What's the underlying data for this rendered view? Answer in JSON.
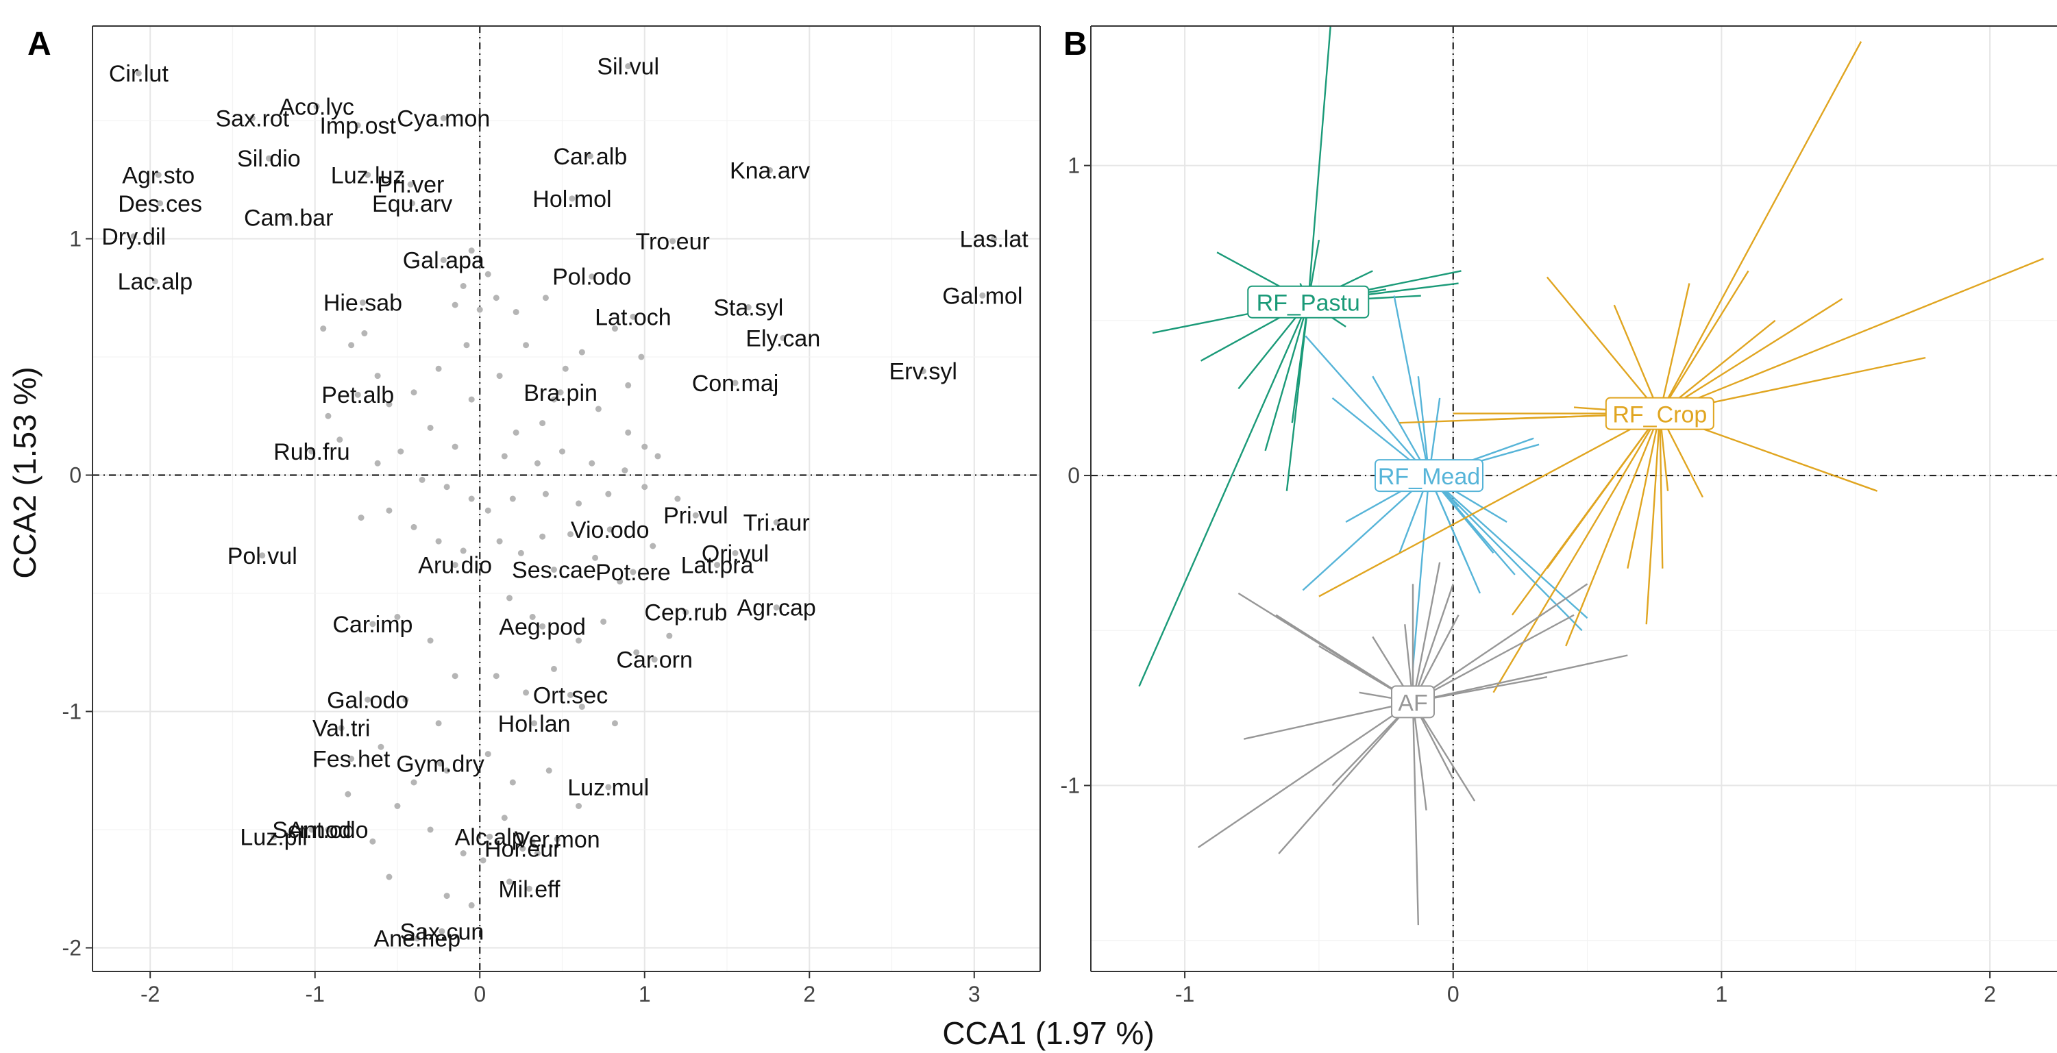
{
  "figure": {
    "xlabel": "CCA1 (1.97 %)",
    "ylabel": "CCA2 (1.53 %)"
  },
  "chart_data": [
    {
      "panel": "A",
      "type": "scatter",
      "grid": true,
      "xlim": [
        -2.35,
        3.4
      ],
      "ylim": [
        -2.1,
        1.9
      ],
      "xticks": [
        -2,
        -1,
        0,
        1,
        2,
        3
      ],
      "yticks": [
        -2,
        -1,
        0,
        1
      ],
      "reference_lines": {
        "x": 0,
        "y": 0,
        "style": "dashed"
      },
      "point_color": "#b5b5b5",
      "labels": [
        {
          "text": "Cir.lut",
          "x": -2.07,
          "y": 1.7
        },
        {
          "text": "Aco.lyc",
          "x": -0.99,
          "y": 1.56
        },
        {
          "text": "Sil.vul",
          "x": 0.9,
          "y": 1.73
        },
        {
          "text": "Sax.rot",
          "x": -1.38,
          "y": 1.51
        },
        {
          "text": "Imp.ost",
          "x": -0.74,
          "y": 1.48
        },
        {
          "text": "Cya.mon",
          "x": -0.22,
          "y": 1.51
        },
        {
          "text": "Car.alb",
          "x": 0.67,
          "y": 1.35
        },
        {
          "text": "Kna.arv",
          "x": 1.76,
          "y": 1.29
        },
        {
          "text": "Agr.sto",
          "x": -1.95,
          "y": 1.27
        },
        {
          "text": "Sil.dio",
          "x": -1.28,
          "y": 1.34
        },
        {
          "text": "Luz.luz",
          "x": -0.68,
          "y": 1.27
        },
        {
          "text": "Pri.ver",
          "x": -0.42,
          "y": 1.23
        },
        {
          "text": "Hol.mol",
          "x": 0.56,
          "y": 1.17
        },
        {
          "text": "Des.ces",
          "x": -1.94,
          "y": 1.15
        },
        {
          "text": "Equ.arv",
          "x": -0.41,
          "y": 1.15
        },
        {
          "text": "Tro.eur",
          "x": 1.17,
          "y": 0.99
        },
        {
          "text": "Dry.dil",
          "x": -2.1,
          "y": 1.01
        },
        {
          "text": "Cam.bar",
          "x": -1.16,
          "y": 1.09
        },
        {
          "text": "Gal.apa",
          "x": -0.22,
          "y": 0.91
        },
        {
          "text": "Pol.odo",
          "x": 0.68,
          "y": 0.84
        },
        {
          "text": "Las.lat",
          "x": 3.12,
          "y": 1.0
        },
        {
          "text": "Lac.alp",
          "x": -1.97,
          "y": 0.82
        },
        {
          "text": "Sta.syl",
          "x": 1.63,
          "y": 0.71
        },
        {
          "text": "Gal.mol",
          "x": 3.05,
          "y": 0.76
        },
        {
          "text": "Lat.och",
          "x": 0.93,
          "y": 0.67
        },
        {
          "text": "Hie.sab",
          "x": -0.71,
          "y": 0.73
        },
        {
          "text": "Erv.syl",
          "x": 2.69,
          "y": 0.44
        },
        {
          "text": "Ely.can",
          "x": 1.84,
          "y": 0.58
        },
        {
          "text": "Bra.pin",
          "x": 0.49,
          "y": 0.35
        },
        {
          "text": "Con.maj",
          "x": 1.55,
          "y": 0.39
        },
        {
          "text": "Pet.alb",
          "x": -0.74,
          "y": 0.34
        },
        {
          "text": "Rub.fru",
          "x": -1.02,
          "y": 0.1
        },
        {
          "text": "Pri.vul",
          "x": 1.31,
          "y": -0.17
        },
        {
          "text": "Tri.aur",
          "x": 1.8,
          "y": -0.2
        },
        {
          "text": "Vio.odo",
          "x": 0.79,
          "y": -0.23
        },
        {
          "text": "Ori.vul",
          "x": 1.55,
          "y": -0.33
        },
        {
          "text": "Pol.vul",
          "x": -1.32,
          "y": -0.34
        },
        {
          "text": "Aru.dio",
          "x": -0.15,
          "y": -0.38
        },
        {
          "text": "Ses.cae",
          "x": 0.45,
          "y": -0.4
        },
        {
          "text": "Pot.ere",
          "x": 0.93,
          "y": -0.41
        },
        {
          "text": "Lat.pra",
          "x": 1.44,
          "y": -0.38
        },
        {
          "text": "Agr.cap",
          "x": 1.8,
          "y": -0.56
        },
        {
          "text": "Car.imp",
          "x": -0.65,
          "y": -0.63
        },
        {
          "text": "Cep.rub",
          "x": 1.25,
          "y": -0.58
        },
        {
          "text": "Aeg.pod",
          "x": 0.38,
          "y": -0.64
        },
        {
          "text": "Gal.odo",
          "x": -0.68,
          "y": -0.95
        },
        {
          "text": "Ort.sec",
          "x": 0.55,
          "y": -0.93
        },
        {
          "text": "Car.orn",
          "x": 1.06,
          "y": -0.78
        },
        {
          "text": "Val.tri",
          "x": -0.84,
          "y": -1.07
        },
        {
          "text": "Hol.lan",
          "x": 0.33,
          "y": -1.05
        },
        {
          "text": "Fes.het",
          "x": -0.78,
          "y": -1.2
        },
        {
          "text": "Gym.dry",
          "x": -0.24,
          "y": -1.22
        },
        {
          "text": "Luz.mul",
          "x": 0.78,
          "y": -1.32
        },
        {
          "text": "Luz.pil",
          "x": -1.25,
          "y": -1.53
        },
        {
          "text": "Ant.odo",
          "x": -0.92,
          "y": -1.5
        },
        {
          "text": "Alc.alp",
          "x": 0.06,
          "y": -1.53
        },
        {
          "text": "Ver.mon",
          "x": 0.47,
          "y": -1.54
        },
        {
          "text": "Scr.nod",
          "x": -1.02,
          "y": -1.5
        },
        {
          "text": "Hor.eur",
          "x": 0.26,
          "y": -1.58
        },
        {
          "text": "Mil.eff",
          "x": 0.3,
          "y": -1.75
        },
        {
          "text": "Sax.cun",
          "x": -0.23,
          "y": -1.93
        },
        {
          "text": "Ane.hep",
          "x": -0.38,
          "y": -1.96
        }
      ],
      "points": [
        [
          0.12,
          -0.28
        ],
        [
          0.25,
          -0.33
        ],
        [
          0.38,
          -0.26
        ],
        [
          0.55,
          -0.25
        ],
        [
          0.7,
          -0.35
        ],
        [
          0.85,
          -0.45
        ],
        [
          1.05,
          -0.3
        ],
        [
          0.18,
          -0.52
        ],
        [
          0.32,
          -0.6
        ],
        [
          0.6,
          -0.7
        ],
        [
          0.75,
          -0.62
        ],
        [
          0.95,
          -0.75
        ],
        [
          1.15,
          -0.68
        ],
        [
          0.1,
          -0.85
        ],
        [
          0.28,
          -0.92
        ],
        [
          0.45,
          -0.82
        ],
        [
          0.62,
          -0.98
        ],
        [
          0.82,
          -1.05
        ],
        [
          0.05,
          -1.18
        ],
        [
          0.2,
          -1.3
        ],
        [
          0.42,
          -1.25
        ],
        [
          0.6,
          -1.4
        ],
        [
          0.15,
          -1.45
        ],
        [
          0.32,
          -1.55
        ],
        [
          0.02,
          -1.63
        ],
        [
          0.18,
          -1.72
        ],
        [
          0.35,
          -1.6
        ],
        [
          -0.05,
          -1.82
        ],
        [
          -0.5,
          -0.6
        ],
        [
          -0.3,
          -0.7
        ],
        [
          -0.15,
          -0.85
        ],
        [
          -0.45,
          -0.95
        ],
        [
          -0.25,
          -1.05
        ],
        [
          -0.6,
          -1.15
        ],
        [
          -0.4,
          -1.3
        ],
        [
          -0.2,
          -1.25
        ],
        [
          -0.5,
          -1.4
        ],
        [
          -0.8,
          -1.35
        ],
        [
          -0.65,
          -1.55
        ],
        [
          -0.3,
          -1.5
        ],
        [
          -0.1,
          -1.6
        ],
        [
          -0.55,
          -1.7
        ],
        [
          -0.2,
          -1.78
        ],
        [
          -0.05,
          0.95
        ],
        [
          0.05,
          0.85
        ],
        [
          -0.1,
          0.8
        ],
        [
          0.1,
          0.75
        ],
        [
          -0.15,
          0.72
        ],
        [
          0.0,
          0.7
        ],
        [
          0.22,
          0.69
        ],
        [
          0.4,
          0.75
        ],
        [
          0.62,
          0.52
        ],
        [
          0.82,
          0.62
        ],
        [
          0.98,
          0.5
        ],
        [
          0.45,
          0.32
        ],
        [
          0.72,
          0.28
        ],
        [
          0.9,
          0.18
        ],
        [
          1.0,
          0.12
        ],
        [
          0.22,
          0.18
        ],
        [
          0.38,
          0.22
        ],
        [
          0.15,
          0.08
        ],
        [
          0.35,
          0.05
        ],
        [
          0.5,
          0.1
        ],
        [
          0.68,
          0.05
        ],
        [
          0.88,
          0.02
        ],
        [
          1.08,
          0.08
        ],
        [
          -0.08,
          0.55
        ],
        [
          -0.25,
          0.45
        ],
        [
          -0.4,
          0.35
        ],
        [
          -0.55,
          0.3
        ],
        [
          -0.3,
          0.2
        ],
        [
          -0.15,
          0.12
        ],
        [
          -0.48,
          0.1
        ],
        [
          -0.62,
          0.05
        ],
        [
          -0.35,
          -0.02
        ],
        [
          -0.2,
          -0.05
        ],
        [
          -0.05,
          -0.1
        ],
        [
          -0.55,
          -0.15
        ],
        [
          -0.72,
          -0.18
        ],
        [
          -0.4,
          -0.22
        ],
        [
          -0.25,
          -0.28
        ],
        [
          -0.1,
          -0.32
        ],
        [
          0.05,
          -0.15
        ],
        [
          0.2,
          -0.1
        ],
        [
          0.4,
          -0.08
        ],
        [
          0.6,
          -0.12
        ],
        [
          0.78,
          -0.08
        ],
        [
          1.0,
          -0.05
        ],
        [
          1.2,
          -0.1
        ],
        [
          -0.85,
          0.15
        ],
        [
          -0.92,
          0.25
        ],
        [
          -0.62,
          0.42
        ],
        [
          -0.78,
          0.55
        ],
        [
          -0.95,
          0.62
        ],
        [
          -0.7,
          0.6
        ],
        [
          -0.05,
          0.32
        ],
        [
          0.12,
          0.42
        ],
        [
          0.28,
          0.55
        ],
        [
          0.52,
          0.45
        ],
        [
          0.9,
          0.38
        ]
      ]
    },
    {
      "panel": "B",
      "type": "scatter",
      "grid": true,
      "xlim": [
        -1.35,
        2.25
      ],
      "ylim": [
        -1.6,
        1.45
      ],
      "xticks": [
        -1,
        0,
        1,
        2
      ],
      "yticks": [
        -1,
        0,
        1
      ],
      "reference_lines": {
        "x": 0,
        "y": 0,
        "style": "dashed"
      },
      "groups": [
        {
          "name": "RF_Pastu",
          "color": "#1a9a78",
          "centroid": [
            -0.54,
            0.56
          ],
          "spokes": [
            [
              -0.43,
              1.74
            ],
            [
              -0.57,
              0.62
            ],
            [
              -1.17,
              -0.68
            ],
            [
              -1.12,
              0.46
            ],
            [
              -0.94,
              0.37
            ],
            [
              -0.88,
              0.72
            ],
            [
              -0.8,
              0.28
            ],
            [
              -0.7,
              0.08
            ],
            [
              -0.62,
              -0.05
            ],
            [
              -0.6,
              0.17
            ],
            [
              -0.5,
              0.76
            ],
            [
              -0.4,
              0.48
            ],
            [
              -0.25,
              0.6
            ],
            [
              -0.12,
              0.58
            ],
            [
              0.03,
              0.66
            ],
            [
              0.02,
              0.62
            ],
            [
              -0.3,
              0.66
            ]
          ]
        },
        {
          "name": "RF_Mead",
          "color": "#56b4d8",
          "centroid": [
            -0.09,
            0.0
          ],
          "spokes": [
            [
              -0.55,
              0.45
            ],
            [
              -0.45,
              0.25
            ],
            [
              -0.22,
              0.58
            ],
            [
              -0.3,
              0.32
            ],
            [
              -0.13,
              0.32
            ],
            [
              -0.05,
              0.25
            ],
            [
              0.02,
              -0.1
            ],
            [
              0.15,
              -0.25
            ],
            [
              0.3,
              0.12
            ],
            [
              0.5,
              -0.46
            ],
            [
              0.48,
              -0.5
            ],
            [
              0.23,
              -0.32
            ],
            [
              0.1,
              -0.38
            ],
            [
              -0.2,
              -0.25
            ],
            [
              -0.4,
              -0.15
            ],
            [
              -0.56,
              -0.37
            ],
            [
              -0.15,
              -0.62
            ],
            [
              0.05,
              -0.28
            ],
            [
              0.2,
              -0.15
            ],
            [
              0.32,
              0.1
            ]
          ]
        },
        {
          "name": "RF_Crop",
          "color": "#e0a520",
          "centroid": [
            0.77,
            0.2
          ],
          "spokes": [
            [
              1.52,
              1.4
            ],
            [
              2.2,
              0.7
            ],
            [
              1.76,
              0.38
            ],
            [
              1.58,
              -0.05
            ],
            [
              1.45,
              0.57
            ],
            [
              1.2,
              0.5
            ],
            [
              1.1,
              0.66
            ],
            [
              0.88,
              0.62
            ],
            [
              0.6,
              0.55
            ],
            [
              0.35,
              0.64
            ],
            [
              -0.2,
              0.17
            ],
            [
              0.1,
              0.18
            ],
            [
              0.35,
              -0.3
            ],
            [
              0.22,
              -0.45
            ],
            [
              0.15,
              -0.7
            ],
            [
              0.42,
              -0.55
            ],
            [
              0.65,
              -0.3
            ],
            [
              0.78,
              -0.3
            ],
            [
              0.93,
              -0.07
            ],
            [
              0.72,
              -0.48
            ],
            [
              0.8,
              -0.05
            ],
            [
              -0.5,
              -0.39
            ],
            [
              0.0,
              0.2
            ],
            [
              0.45,
              0.22
            ]
          ]
        },
        {
          "name": "AF",
          "color": "#979797",
          "centroid": [
            -0.15,
            -0.73
          ],
          "spokes": [
            [
              -0.8,
              -0.38
            ],
            [
              -0.66,
              -0.45
            ],
            [
              -0.78,
              -0.85
            ],
            [
              -0.95,
              -1.2
            ],
            [
              -0.65,
              -1.22
            ],
            [
              -0.45,
              -1.0
            ],
            [
              -0.3,
              -0.52
            ],
            [
              -0.18,
              -0.48
            ],
            [
              -0.15,
              -0.35
            ],
            [
              -0.13,
              -1.45
            ],
            [
              -0.1,
              -1.08
            ],
            [
              0.0,
              -0.35
            ],
            [
              -0.05,
              -0.28
            ],
            [
              0.02,
              -0.45
            ],
            [
              0.08,
              -1.05
            ],
            [
              0.0,
              -0.98
            ],
            [
              0.35,
              -0.65
            ],
            [
              0.45,
              -0.45
            ],
            [
              0.5,
              -0.35
            ],
            [
              0.65,
              -0.58
            ],
            [
              -0.5,
              -0.55
            ],
            [
              -0.35,
              -0.7
            ]
          ]
        }
      ]
    }
  ]
}
